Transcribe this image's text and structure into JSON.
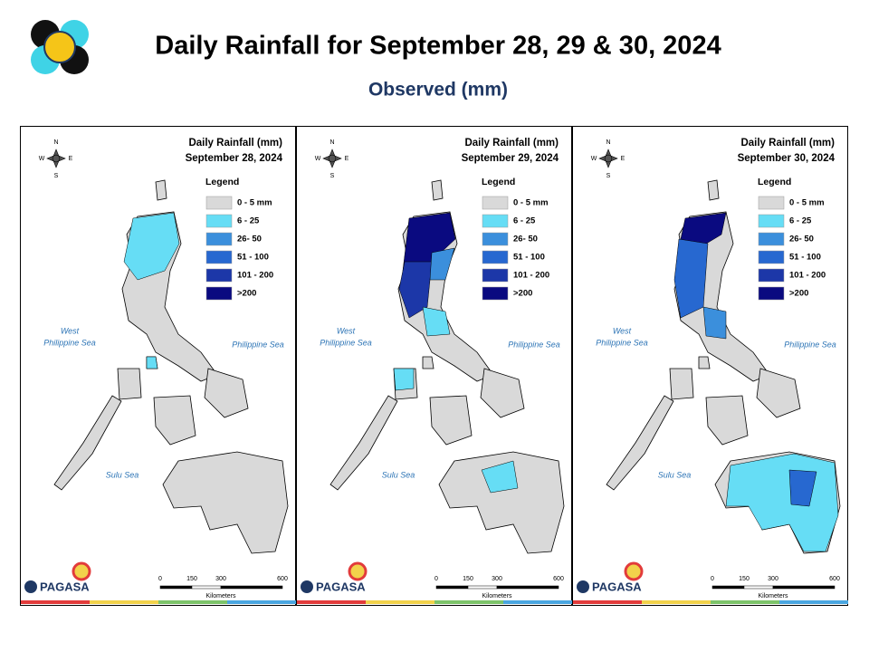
{
  "header": {
    "title": "Daily Rainfall for September 28, 29 & 30, 2024",
    "subtitle": "Observed (mm)"
  },
  "map_labels": {
    "heading": "Daily Rainfall (mm)",
    "legend_title": "Legend",
    "west": "West",
    "west_sea": "Philippine Sea",
    "east_sea": "Philippine Sea",
    "sulu_sea": "Sulu Sea",
    "scale": [
      "0",
      "150",
      "300",
      "600"
    ],
    "scale_unit": "Kilometers",
    "compass": [
      "N",
      "E",
      "S",
      "W"
    ],
    "logo": "PAGASA"
  },
  "legend": [
    {
      "label": "0 - 5 mm",
      "color": "#d9d9d9"
    },
    {
      "label": "6 - 25",
      "color": "#66ddf5"
    },
    {
      "label": "26- 50",
      "color": "#3b8fdc"
    },
    {
      "label": "51 - 100",
      "color": "#2768d0"
    },
    {
      "label": "101 - 200",
      "color": "#1c37a8"
    },
    {
      "label": ">200",
      "color": "#0a0a80"
    }
  ],
  "panels": [
    {
      "date": "September 28, 2024"
    },
    {
      "date": "September 29, 2024"
    },
    {
      "date": "September 30, 2024"
    }
  ]
}
